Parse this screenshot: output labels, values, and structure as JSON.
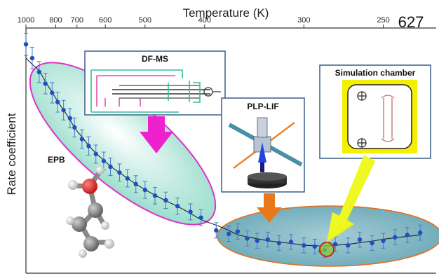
{
  "figure_number": "627",
  "chart_data": {
    "type": "scatter",
    "x_axis": {
      "label": "Temperature (K)",
      "ticks": [
        "1000",
        "800",
        "700",
        "600",
        "500",
        "400",
        "300",
        "250"
      ],
      "tick_values": [
        1000,
        800,
        700,
        600,
        500,
        400,
        300,
        250
      ],
      "scale": "reciprocal",
      "position": "top",
      "range": [
        1000,
        225
      ]
    },
    "y_axis": {
      "label": "Rate coefficient",
      "ticks": []
    },
    "fit_curve": true,
    "series": [
      {
        "label": "DF-MS",
        "points": [
          {
            "x": 1000,
            "y": 9.6
          },
          {
            "x": 950,
            "y": 9.0
          },
          {
            "x": 900,
            "y": 8.4
          },
          {
            "x": 860,
            "y": 7.9
          },
          {
            "x": 820,
            "y": 7.5
          },
          {
            "x": 790,
            "y": 7.1
          },
          {
            "x": 760,
            "y": 6.75
          },
          {
            "x": 730,
            "y": 6.4
          },
          {
            "x": 710,
            "y": 6.0
          },
          {
            "x": 680,
            "y": 5.5
          },
          {
            "x": 655,
            "y": 5.2
          },
          {
            "x": 630,
            "y": 4.85
          },
          {
            "x": 605,
            "y": 4.55
          },
          {
            "x": 585,
            "y": 4.3
          },
          {
            "x": 560,
            "y": 4.05
          },
          {
            "x": 540,
            "y": 3.8
          },
          {
            "x": 520,
            "y": 3.55
          },
          {
            "x": 500,
            "y": 3.3
          },
          {
            "x": 480,
            "y": 3.05
          },
          {
            "x": 460,
            "y": 2.85
          },
          {
            "x": 440,
            "y": 2.6
          },
          {
            "x": 420,
            "y": 2.35
          },
          {
            "x": 405,
            "y": 2.1
          }
        ]
      },
      {
        "label": "PLP-LIF",
        "points": [
          {
            "x": 385,
            "y": 1.55
          },
          {
            "x": 370,
            "y": 1.4
          },
          {
            "x": 360,
            "y": 1.5
          },
          {
            "x": 350,
            "y": 1.2
          },
          {
            "x": 340,
            "y": 1.1
          },
          {
            "x": 330,
            "y": 1.15
          },
          {
            "x": 320,
            "y": 1.0
          },
          {
            "x": 310,
            "y": 1.05
          },
          {
            "x": 300,
            "y": 0.9
          },
          {
            "x": 292,
            "y": 0.85
          },
          {
            "x": 285,
            "y": 0.7
          },
          {
            "x": 278,
            "y": 0.95
          },
          {
            "x": 270,
            "y": 0.9
          },
          {
            "x": 263,
            "y": 1.15
          },
          {
            "x": 256,
            "y": 1.0
          },
          {
            "x": 250,
            "y": 1.1
          },
          {
            "x": 244,
            "y": 1.25
          },
          {
            "x": 238,
            "y": 1.35
          },
          {
            "x": 232,
            "y": 1.45
          }
        ]
      },
      {
        "label": "Simulation chamber",
        "points": [
          {
            "x": 288,
            "y": 0.65
          }
        ]
      }
    ],
    "annotations": [
      {
        "text": "DF-MS",
        "kind": "inset"
      },
      {
        "text": "PLP-LIF",
        "kind": "inset"
      },
      {
        "text": "Simulation chamber",
        "kind": "inset"
      },
      {
        "text": "EPB",
        "kind": "molecule-label"
      }
    ],
    "colors": {
      "points": "#2050c0",
      "error_bars": "#4a7ac8",
      "fit": "#222222",
      "dfms_ellipse_fill": "#c8ece0",
      "dfms_ellipse_stroke": "#dd33cc",
      "plp_ellipse_fill": "#7fb8c4",
      "plp_ellipse_stroke": "#e07020",
      "arrow_magenta": "#ee22cc",
      "arrow_orange": "#e8781a",
      "arrow_yellow": "#f0f000",
      "sim_frame": "#f4f000"
    }
  }
}
